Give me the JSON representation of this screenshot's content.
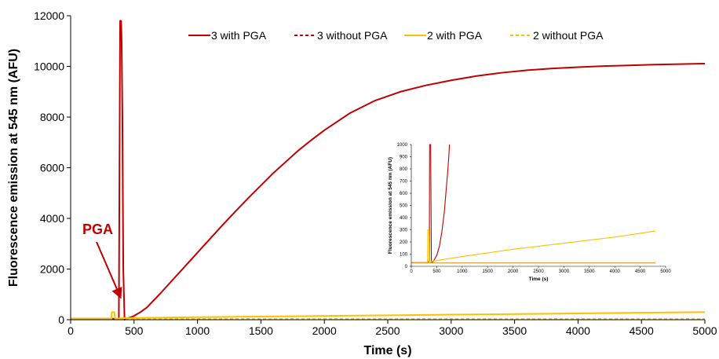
{
  "colors": {
    "red": "#c00000",
    "yellow": "#ffc000",
    "orange": "#e8962e",
    "axis": "#000000",
    "annotation": "#c00000"
  },
  "chart_data": [
    {
      "type": "line",
      "xlabel": "Time (s)",
      "ylabel": "Fluorescence emission at 545 nm (AFU)",
      "xlim": [
        0,
        5000
      ],
      "ylim": [
        0,
        12000
      ],
      "xticks": [
        0,
        500,
        1000,
        1500,
        2000,
        2500,
        3000,
        3500,
        4000,
        4500,
        5000
      ],
      "yticks": [
        0,
        2000,
        4000,
        6000,
        8000,
        10000,
        12000
      ],
      "legend_position": "top",
      "grid": false,
      "annotation": {
        "text": "PGA",
        "arrow_to": [
          330,
          900
        ]
      },
      "series": [
        {
          "name": "3 with PGA",
          "style": "solid",
          "color": "#c00000",
          "x": [
            0,
            300,
            370,
            380,
            390,
            398,
            402,
            408,
            415,
            425,
            440,
            460,
            480,
            500,
            550,
            600,
            700,
            800,
            900,
            1000,
            1100,
            1200,
            1300,
            1400,
            1500,
            1600,
            1700,
            1800,
            1900,
            2000,
            2200,
            2400,
            2600,
            2800,
            3000,
            3200,
            3400,
            3600,
            3800,
            4000,
            4200,
            4400,
            4600,
            4800,
            5000
          ],
          "values": [
            40,
            40,
            40,
            40,
            11800,
            11800,
            11000,
            8000,
            2000,
            0,
            30,
            80,
            110,
            150,
            300,
            480,
            1000,
            1550,
            2100,
            2650,
            3200,
            3750,
            4280,
            4800,
            5300,
            5800,
            6250,
            6700,
            7100,
            7480,
            8150,
            8650,
            9000,
            9250,
            9450,
            9620,
            9750,
            9850,
            9920,
            9970,
            10010,
            10040,
            10070,
            10090,
            10110
          ]
        },
        {
          "name": "3 without PGA",
          "style": "dashed",
          "color": "#c00000",
          "x": [
            0,
            5000
          ],
          "values": [
            25,
            25
          ]
        },
        {
          "name": "2 with PGA",
          "style": "solid",
          "color": "#ffc000",
          "x": [
            0,
            320,
            325,
            345,
            350,
            360,
            400,
            1000,
            2000,
            3000,
            4000,
            5000
          ],
          "values": [
            40,
            40,
            300,
            300,
            40,
            40,
            60,
            100,
            150,
            200,
            250,
            300
          ]
        },
        {
          "name": "2 without PGA",
          "style": "dashed",
          "color": "#ffc000",
          "x": [
            0,
            5000
          ],
          "values": [
            30,
            30
          ]
        }
      ]
    },
    {
      "type": "line",
      "xlabel": "Time (s)",
      "ylabel": "Fluorescence emission at 545 nm (AFU)",
      "xlim": [
        0,
        5000
      ],
      "ylim": [
        0,
        1000
      ],
      "xticks": [
        0,
        500,
        1000,
        1500,
        2000,
        2500,
        3000,
        3500,
        4000,
        4500,
        5000
      ],
      "yticks": [
        0,
        100,
        200,
        300,
        400,
        500,
        600,
        700,
        800,
        900,
        1000
      ],
      "legend_position": "none",
      "grid": false,
      "series": [
        {
          "style": "solid",
          "color": "#c00000",
          "x": [
            0,
            320,
            340,
            355,
            360,
            380,
            395,
            400,
            420,
            440,
            500,
            550,
            600,
            650,
            700,
            720,
            740,
            750
          ],
          "values": [
            30,
            30,
            40,
            40,
            1000,
            1000,
            40,
            30,
            35,
            45,
            90,
            160,
            280,
            450,
            700,
            800,
            920,
            1000
          ]
        },
        {
          "style": "solid",
          "color": "#ffc000",
          "x": [
            0,
            300,
            320,
            325,
            345,
            350,
            380,
            1000,
            2000,
            3000,
            4000,
            4800
          ],
          "values": [
            30,
            30,
            30,
            300,
            300,
            40,
            40,
            80,
            140,
            190,
            240,
            290
          ]
        },
        {
          "style": "solid",
          "color": "#e8962e",
          "x": [
            0,
            4800
          ],
          "values": [
            28,
            28
          ]
        }
      ]
    }
  ]
}
